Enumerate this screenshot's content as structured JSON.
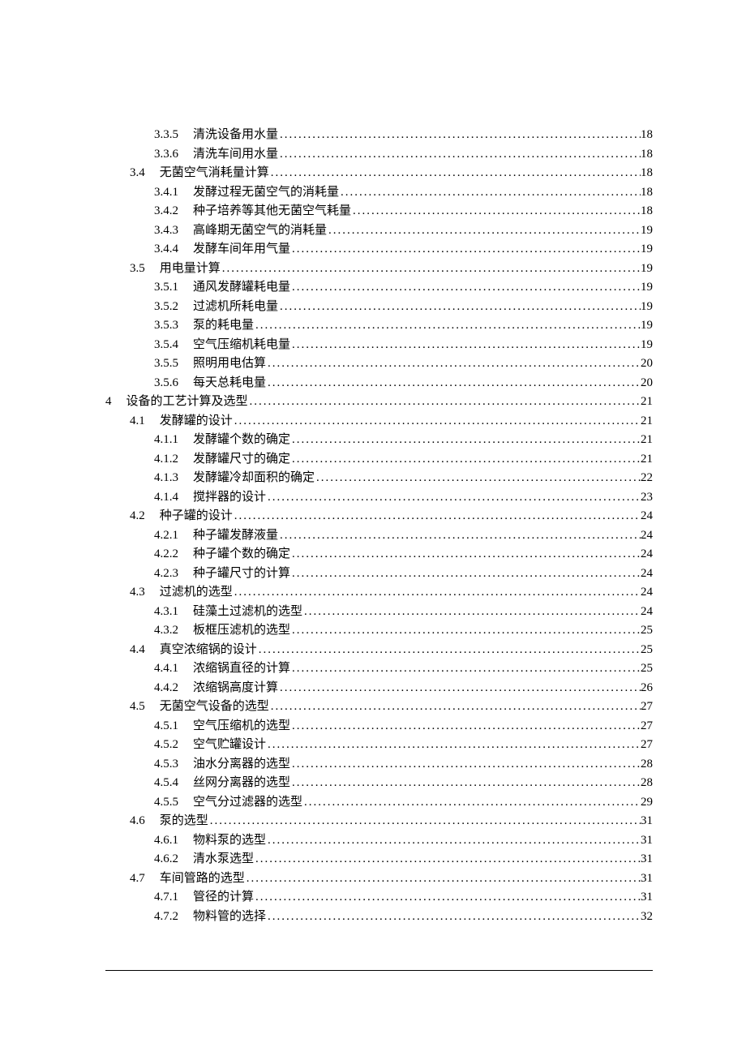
{
  "toc": [
    {
      "level": 3,
      "number": "3.3.5",
      "title": "清洗设备用水量",
      "page": "18"
    },
    {
      "level": 3,
      "number": "3.3.6",
      "title": "清洗车间用水量",
      "page": "18"
    },
    {
      "level": 2,
      "number": "3.4",
      "title": "无菌空气消耗量计算",
      "page": "18"
    },
    {
      "level": 3,
      "number": "3.4.1",
      "title": "发酵过程无菌空气的消耗量",
      "page": "18"
    },
    {
      "level": 3,
      "number": "3.4.2",
      "title": "种子培养等其他无菌空气耗量",
      "page": "18"
    },
    {
      "level": 3,
      "number": "3.4.3",
      "title": "高峰期无菌空气的消耗量",
      "page": "19"
    },
    {
      "level": 3,
      "number": "3.4.4",
      "title": "发酵车间年用气量",
      "page": "19"
    },
    {
      "level": 2,
      "number": "3.5",
      "title": "用电量计算",
      "page": "19"
    },
    {
      "level": 3,
      "number": "3.5.1",
      "title": "通风发酵罐耗电量",
      "page": "19"
    },
    {
      "level": 3,
      "number": "3.5.2",
      "title": "过滤机所耗电量",
      "page": "19"
    },
    {
      "level": 3,
      "number": "3.5.3",
      "title": "泵的耗电量",
      "page": "19"
    },
    {
      "level": 3,
      "number": "3.5.4",
      "title": "空气压缩机耗电量",
      "page": "19"
    },
    {
      "level": 3,
      "number": "3.5.5",
      "title": "照明用电估算",
      "page": "20"
    },
    {
      "level": 3,
      "number": "3.5.6",
      "title": "每天总耗电量",
      "page": "20"
    },
    {
      "level": 1,
      "number": "4",
      "title": "设备的工艺计算及选型",
      "page": "21"
    },
    {
      "level": 2,
      "number": "4.1",
      "title": "发酵罐的设计",
      "page": "21"
    },
    {
      "level": 3,
      "number": "4.1.1",
      "title": "发酵罐个数的确定",
      "page": "21"
    },
    {
      "level": 3,
      "number": "4.1.2",
      "title": "发酵罐尺寸的确定",
      "page": "21"
    },
    {
      "level": 3,
      "number": "4.1.3",
      "title": "发酵罐冷却面积的确定",
      "page": "22"
    },
    {
      "level": 3,
      "number": "4.1.4",
      "title": "搅拌器的设计",
      "page": "23"
    },
    {
      "level": 2,
      "number": "4.2",
      "title": "种子罐的设计",
      "page": "24"
    },
    {
      "level": 3,
      "number": "4.2.1",
      "title": "种子罐发酵液量",
      "page": "24"
    },
    {
      "level": 3,
      "number": "4.2.2",
      "title": "种子罐个数的确定",
      "page": "24"
    },
    {
      "level": 3,
      "number": "4.2.3",
      "title": "种子罐尺寸的计算",
      "page": "24"
    },
    {
      "level": 2,
      "number": "4.3",
      "title": "过滤机的选型",
      "page": "24"
    },
    {
      "level": 3,
      "number": "4.3.1",
      "title": "硅藻土过滤机的选型",
      "page": "24"
    },
    {
      "level": 3,
      "number": "4.3.2",
      "title": "板框压滤机的选型",
      "page": "25"
    },
    {
      "level": 2,
      "number": "4.4",
      "title": "真空浓缩锅的设计",
      "page": "25"
    },
    {
      "level": 3,
      "number": "4.4.1",
      "title": "浓缩锅直径的计算",
      "page": "25"
    },
    {
      "level": 3,
      "number": "4.4.2",
      "title": "浓缩锅高度计算",
      "page": "26"
    },
    {
      "level": 2,
      "number": "4.5",
      "title": "无菌空气设备的选型",
      "page": "27"
    },
    {
      "level": 3,
      "number": "4.5.1",
      "title": "空气压缩机的选型",
      "page": "27"
    },
    {
      "level": 3,
      "number": "4.5.2",
      "title": "空气贮罐设计",
      "page": "27"
    },
    {
      "level": 3,
      "number": "4.5.3",
      "title": "油水分离器的选型",
      "page": "28"
    },
    {
      "level": 3,
      "number": "4.5.4",
      "title": "丝网分离器的选型",
      "page": "28"
    },
    {
      "level": 3,
      "number": "4.5.5",
      "title": "空气分过滤器的选型",
      "page": "29"
    },
    {
      "level": 2,
      "number": "4.6",
      "title": "泵的选型",
      "page": "31"
    },
    {
      "level": 3,
      "number": "4.6.1",
      "title": "物料泵的选型",
      "page": "31"
    },
    {
      "level": 3,
      "number": "4.6.2",
      "title": "清水泵选型",
      "page": "31"
    },
    {
      "level": 2,
      "number": "4.7",
      "title": "车间管路的选型",
      "page": "31"
    },
    {
      "level": 3,
      "number": "4.7.1",
      "title": "管径的计算",
      "page": "31"
    },
    {
      "level": 3,
      "number": "4.7.2",
      "title": "物料管的选择",
      "page": "32"
    }
  ]
}
